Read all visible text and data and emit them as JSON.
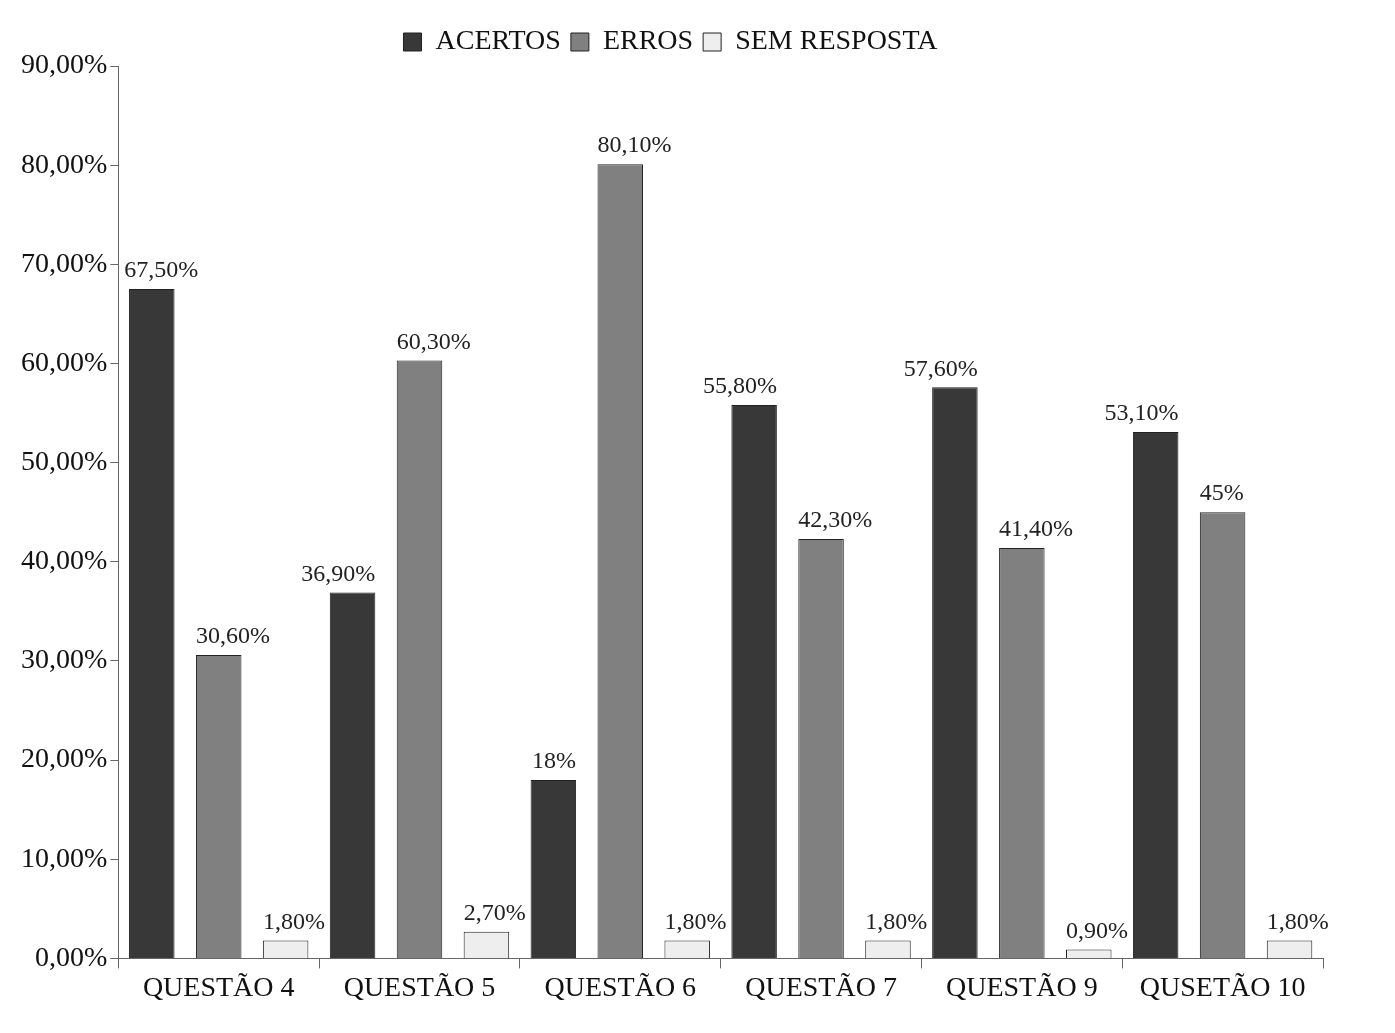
{
  "chart_data": {
    "type": "bar",
    "categories": [
      "QUESTÃO 4",
      "QUESTÃO 5",
      "QUESTÃO 6",
      "QUESTÃO 7",
      "QUESTÃO 9",
      "QUSETÃO 10"
    ],
    "series": [
      {
        "name": "ACERTOS",
        "color": "#383838",
        "values": [
          67.5,
          36.9,
          18,
          55.8,
          57.6,
          53.1
        ],
        "value_labels": [
          "67,50%",
          "36,90%",
          "18%",
          "55,80%",
          "57,60%",
          "53,10%"
        ]
      },
      {
        "name": "ERROS",
        "color": "#808080",
        "values": [
          30.6,
          60.3,
          80.1,
          42.3,
          41.4,
          45
        ],
        "value_labels": [
          "30,60%",
          "60,30%",
          "80,10%",
          "42,30%",
          "41,40%",
          "45%"
        ]
      },
      {
        "name": "SEM RESPOSTA",
        "color": "#eeeeee",
        "values": [
          1.8,
          2.7,
          1.8,
          1.8,
          0.9,
          1.8
        ],
        "value_labels": [
          "1,80%",
          "2,70%",
          "1,80%",
          "1,80%",
          "0,90%",
          "1,80%"
        ]
      }
    ],
    "ylim": [
      0,
      90
    ],
    "yticks": [
      {
        "value": 0,
        "label": "0,00%"
      },
      {
        "value": 10,
        "label": "10,00%"
      },
      {
        "value": 20,
        "label": "20,00%"
      },
      {
        "value": 30,
        "label": "30,00%"
      },
      {
        "value": 40,
        "label": "40,00%"
      },
      {
        "value": 50,
        "label": "50,00%"
      },
      {
        "value": 60,
        "label": "60,00%"
      },
      {
        "value": 70,
        "label": "70,00%"
      },
      {
        "value": 80,
        "label": "80,00%"
      },
      {
        "value": 90,
        "label": "90,00%"
      }
    ],
    "grid": false,
    "legend": "top"
  }
}
